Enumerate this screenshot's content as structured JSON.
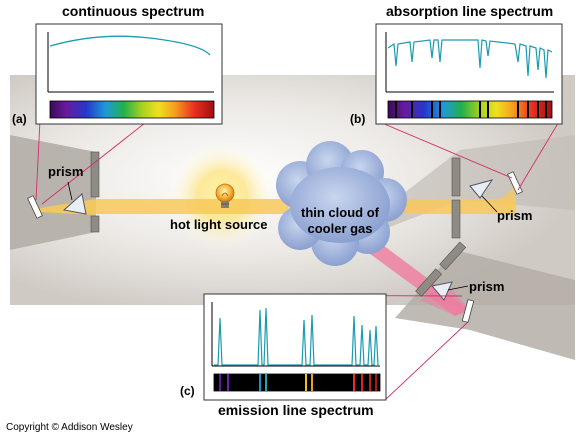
{
  "labels": {
    "continuous_title": "continuous spectrum",
    "absorption_title": "absorption line spectrum",
    "emission_title": "emission line spectrum",
    "panel_a": "(a)",
    "panel_b": "(b)",
    "panel_c": "(c)",
    "prism_a": "prism",
    "prism_b": "prism",
    "prism_c": "prism",
    "light_source": "hot light source",
    "cloud_line1": "thin cloud of",
    "cloud_line2": "cooler gas",
    "copyright": "Copyright © Addison Wesley"
  },
  "colors": {
    "curve": "#1a9bb0",
    "beam": "#f7c95a",
    "beam_pink": "#f07aa0",
    "cloud": "#9fb4dc",
    "leader": "#d0306a",
    "screen": "#8e8a84",
    "background_band": "#d6d1cc"
  }
}
